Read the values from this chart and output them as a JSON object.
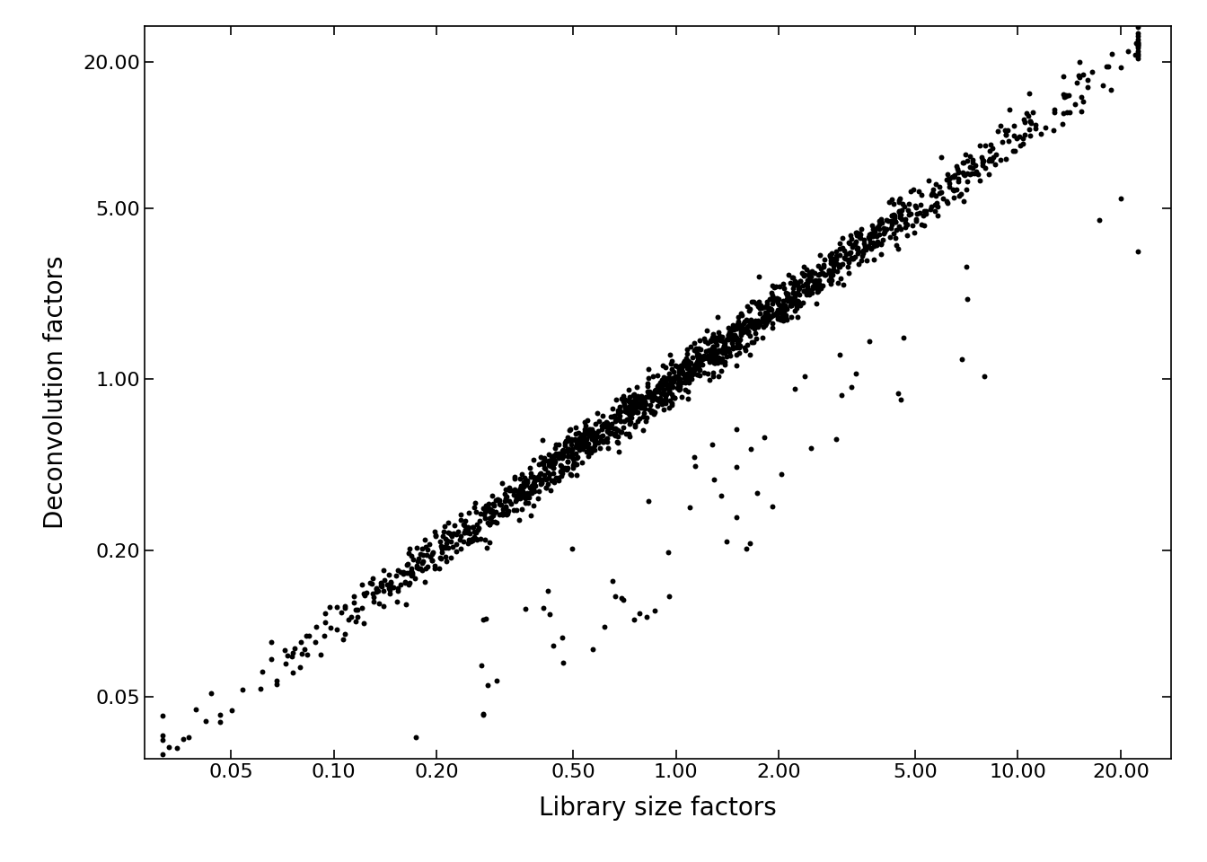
{
  "xlabel": "Library size factors",
  "ylabel": "Deconvolution factors",
  "background_color": "#ffffff",
  "point_color": "#000000",
  "point_size": 18,
  "xlim": [
    0.028,
    28.0
  ],
  "ylim": [
    0.028,
    28.0
  ],
  "xticks": [
    0.05,
    0.1,
    0.2,
    0.5,
    1.0,
    2.0,
    5.0,
    10.0,
    20.0
  ],
  "yticks": [
    0.05,
    0.2,
    1.0,
    5.0,
    20.0
  ],
  "xlabel_fontsize": 20,
  "ylabel_fontsize": 20,
  "tick_fontsize": 16,
  "n_points": 1700
}
